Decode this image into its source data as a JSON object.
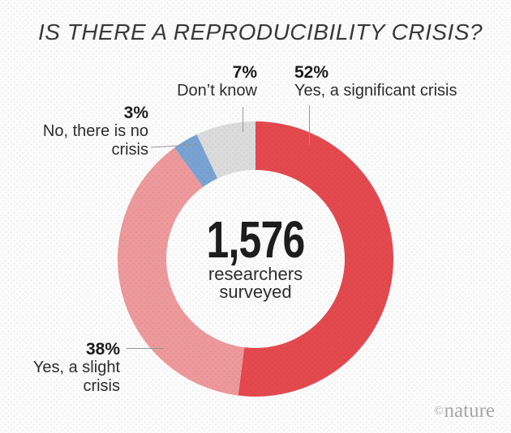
{
  "chart_data": {
    "type": "pie",
    "subtype": "donut",
    "title": "IS THERE A REPRODUCIBILITY CRISIS?",
    "center": {
      "value": "1,576",
      "label": "researchers\nsurveyed"
    },
    "segments": [
      {
        "name": "yes-significant",
        "label": "Yes, a significant crisis",
        "value_pct": 52,
        "pct_label": "52%",
        "color": "#e4494e"
      },
      {
        "name": "yes-slight",
        "label": "Yes, a slight\ncrisis",
        "value_pct": 38,
        "pct_label": "38%",
        "color": "#ee999c"
      },
      {
        "name": "no-crisis",
        "label": "No, there is no\ncrisis",
        "value_pct": 3,
        "pct_label": "3%",
        "color": "#79a3d3"
      },
      {
        "name": "dont-know",
        "label": "Don’t know",
        "value_pct": 7,
        "pct_label": "7%",
        "color": "#dcdcdc"
      }
    ],
    "start_angle_deg": 0,
    "direction": "clockwise",
    "legend_position": "callout-labels",
    "background_color": "#fcfcfc"
  },
  "source": {
    "symbol": "©",
    "name": "nature"
  }
}
